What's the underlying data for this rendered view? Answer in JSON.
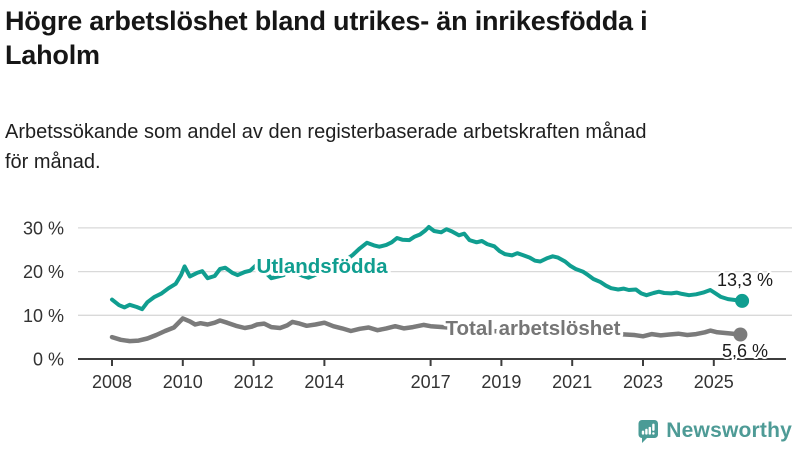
{
  "header": {
    "title": "Högre arbetslöshet bland utrikes- än inrikesfödda i Laholm",
    "title_lines": [
      "Högre arbetslöshet bland utrikes- än inrikesfödda i",
      "Laholm"
    ],
    "subtitle": "Arbetssökande som andel av den registerbaserade arbetskraften månad för månad.",
    "subtitle_lines": [
      "Arbetssökande som andel av den registerbaserade arbetskraften månad",
      "för månad."
    ]
  },
  "chart_data": {
    "type": "line",
    "title": "Högre arbetslöshet bland utrikes- än inrikesfödda i Laholm",
    "subtitle": "Arbetssökande som andel av den registerbaserade arbetskraften månad för månad.",
    "xlabel": "",
    "ylabel": "",
    "grid": true,
    "legend_position": "inline-labels",
    "x_axis": {
      "range": [
        2007.2,
        2026.4
      ],
      "ticks": [
        2008,
        2010,
        2012,
        2014,
        2017,
        2019,
        2021,
        2023,
        2025
      ],
      "tick_labels": [
        "2008",
        "2010",
        "2012",
        "2014",
        "2017",
        "2019",
        "2021",
        "2023",
        "2025"
      ]
    },
    "y_axis": {
      "range": [
        0,
        32
      ],
      "ticks": [
        0,
        10,
        20,
        30
      ],
      "tick_labels": [
        "0 %",
        "10 %",
        "20 %",
        "30 %"
      ]
    },
    "series": [
      {
        "id": "utlandsfodda",
        "name": "Utlandsfödda",
        "color": "#109e90",
        "width": 4,
        "end_value": 13.3,
        "end_label": "13,3 %",
        "points": [
          [
            2008.0,
            13.6
          ],
          [
            2008.2,
            12.3
          ],
          [
            2008.35,
            11.8
          ],
          [
            2008.5,
            12.4
          ],
          [
            2008.7,
            11.9
          ],
          [
            2008.85,
            11.4
          ],
          [
            2009.0,
            13.0
          ],
          [
            2009.2,
            14.2
          ],
          [
            2009.4,
            15.0
          ],
          [
            2009.6,
            16.2
          ],
          [
            2009.8,
            17.2
          ],
          [
            2009.95,
            19.2
          ],
          [
            2010.05,
            21.2
          ],
          [
            2010.2,
            18.9
          ],
          [
            2010.4,
            19.7
          ],
          [
            2010.55,
            20.1
          ],
          [
            2010.7,
            18.5
          ],
          [
            2010.9,
            19.0
          ],
          [
            2011.05,
            20.6
          ],
          [
            2011.2,
            20.9
          ],
          [
            2011.4,
            19.7
          ],
          [
            2011.55,
            19.2
          ],
          [
            2011.75,
            19.9
          ],
          [
            2011.9,
            20.2
          ],
          [
            2012.05,
            21.3
          ],
          [
            2012.2,
            20.1
          ],
          [
            2012.35,
            19.7
          ],
          [
            2012.5,
            18.5
          ],
          [
            2012.7,
            18.9
          ],
          [
            2012.85,
            19.2
          ],
          [
            2013.0,
            20.4
          ],
          [
            2013.2,
            19.7
          ],
          [
            2013.4,
            19.0
          ],
          [
            2013.55,
            18.6
          ],
          [
            2013.7,
            19.1
          ],
          [
            2013.85,
            19.7
          ],
          [
            2014.0,
            21.2
          ],
          [
            2014.2,
            20.6
          ],
          [
            2014.4,
            21.4
          ],
          [
            2014.6,
            22.6
          ],
          [
            2014.8,
            23.8
          ],
          [
            2015.0,
            25.3
          ],
          [
            2015.2,
            26.6
          ],
          [
            2015.4,
            26.0
          ],
          [
            2015.55,
            25.7
          ],
          [
            2015.75,
            26.1
          ],
          [
            2015.9,
            26.7
          ],
          [
            2016.05,
            27.7
          ],
          [
            2016.2,
            27.3
          ],
          [
            2016.4,
            27.2
          ],
          [
            2016.55,
            28.0
          ],
          [
            2016.7,
            28.5
          ],
          [
            2016.85,
            29.4
          ],
          [
            2016.95,
            30.2
          ],
          [
            2017.1,
            29.3
          ],
          [
            2017.3,
            29.0
          ],
          [
            2017.45,
            29.7
          ],
          [
            2017.6,
            29.2
          ],
          [
            2017.8,
            28.3
          ],
          [
            2017.95,
            28.7
          ],
          [
            2018.1,
            27.2
          ],
          [
            2018.3,
            26.7
          ],
          [
            2018.45,
            27.0
          ],
          [
            2018.6,
            26.3
          ],
          [
            2018.8,
            25.8
          ],
          [
            2018.95,
            24.7
          ],
          [
            2019.1,
            24.0
          ],
          [
            2019.3,
            23.7
          ],
          [
            2019.45,
            24.2
          ],
          [
            2019.6,
            23.8
          ],
          [
            2019.8,
            23.2
          ],
          [
            2019.95,
            22.5
          ],
          [
            2020.1,
            22.3
          ],
          [
            2020.3,
            23.1
          ],
          [
            2020.45,
            23.5
          ],
          [
            2020.6,
            23.2
          ],
          [
            2020.8,
            22.3
          ],
          [
            2020.95,
            21.3
          ],
          [
            2021.1,
            20.6
          ],
          [
            2021.3,
            20.0
          ],
          [
            2021.45,
            19.2
          ],
          [
            2021.6,
            18.3
          ],
          [
            2021.8,
            17.6
          ],
          [
            2021.95,
            16.8
          ],
          [
            2022.1,
            16.2
          ],
          [
            2022.3,
            15.9
          ],
          [
            2022.45,
            16.1
          ],
          [
            2022.6,
            15.8
          ],
          [
            2022.8,
            15.9
          ],
          [
            2022.95,
            15.0
          ],
          [
            2023.1,
            14.6
          ],
          [
            2023.3,
            15.1
          ],
          [
            2023.45,
            15.4
          ],
          [
            2023.6,
            15.1
          ],
          [
            2023.8,
            15.0
          ],
          [
            2023.95,
            15.2
          ],
          [
            2024.1,
            14.9
          ],
          [
            2024.3,
            14.6
          ],
          [
            2024.5,
            14.8
          ],
          [
            2024.7,
            15.2
          ],
          [
            2024.9,
            15.8
          ],
          [
            2025.05,
            15.0
          ],
          [
            2025.2,
            14.2
          ],
          [
            2025.4,
            13.7
          ],
          [
            2025.6,
            13.5
          ],
          [
            2025.8,
            13.3
          ]
        ]
      },
      {
        "id": "total",
        "name": "Total arbetslöshet",
        "color": "#7b7b7b",
        "width": 4.5,
        "end_value": 5.6,
        "end_label": "5,6 %",
        "points": [
          [
            2008.0,
            5.0
          ],
          [
            2008.25,
            4.4
          ],
          [
            2008.5,
            4.1
          ],
          [
            2008.75,
            4.2
          ],
          [
            2009.0,
            4.7
          ],
          [
            2009.25,
            5.5
          ],
          [
            2009.5,
            6.4
          ],
          [
            2009.75,
            7.2
          ],
          [
            2010.0,
            9.3
          ],
          [
            2010.2,
            8.6
          ],
          [
            2010.35,
            7.9
          ],
          [
            2010.5,
            8.2
          ],
          [
            2010.7,
            7.9
          ],
          [
            2010.9,
            8.3
          ],
          [
            2011.05,
            8.8
          ],
          [
            2011.25,
            8.3
          ],
          [
            2011.5,
            7.6
          ],
          [
            2011.75,
            7.1
          ],
          [
            2011.95,
            7.4
          ],
          [
            2012.1,
            7.9
          ],
          [
            2012.3,
            8.1
          ],
          [
            2012.5,
            7.3
          ],
          [
            2012.75,
            7.1
          ],
          [
            2012.95,
            7.7
          ],
          [
            2013.1,
            8.5
          ],
          [
            2013.3,
            8.1
          ],
          [
            2013.5,
            7.6
          ],
          [
            2013.75,
            7.9
          ],
          [
            2014.0,
            8.3
          ],
          [
            2014.25,
            7.5
          ],
          [
            2014.5,
            7.0
          ],
          [
            2014.75,
            6.4
          ],
          [
            2015.0,
            6.9
          ],
          [
            2015.25,
            7.2
          ],
          [
            2015.5,
            6.6
          ],
          [
            2015.75,
            7.0
          ],
          [
            2016.0,
            7.5
          ],
          [
            2016.25,
            7.0
          ],
          [
            2016.5,
            7.3
          ],
          [
            2016.8,
            7.8
          ],
          [
            2017.0,
            7.5
          ],
          [
            2017.5,
            7.2
          ],
          [
            2018.0,
            6.9
          ],
          [
            2018.5,
            6.5
          ],
          [
            2019.0,
            6.3
          ],
          [
            2019.5,
            6.1
          ],
          [
            2020.0,
            6.5
          ],
          [
            2020.35,
            7.3
          ],
          [
            2020.7,
            7.0
          ],
          [
            2021.0,
            6.7
          ],
          [
            2021.5,
            6.3
          ],
          [
            2022.0,
            5.9
          ],
          [
            2022.5,
            5.6
          ],
          [
            2022.75,
            5.5
          ],
          [
            2023.0,
            5.2
          ],
          [
            2023.25,
            5.7
          ],
          [
            2023.5,
            5.4
          ],
          [
            2023.75,
            5.6
          ],
          [
            2024.0,
            5.8
          ],
          [
            2024.25,
            5.5
          ],
          [
            2024.5,
            5.7
          ],
          [
            2024.75,
            6.1
          ],
          [
            2024.9,
            6.5
          ],
          [
            2025.1,
            6.1
          ],
          [
            2025.4,
            5.9
          ],
          [
            2025.75,
            5.6
          ]
        ]
      }
    ],
    "colors": {
      "utlandsfodda_line": "#109e90",
      "total_line": "#7b7b7b",
      "gridline": "#d9d9d9",
      "axis": "#3d3d3d",
      "text": "#333333"
    }
  },
  "footer": {
    "brand": "Newsworthy"
  }
}
